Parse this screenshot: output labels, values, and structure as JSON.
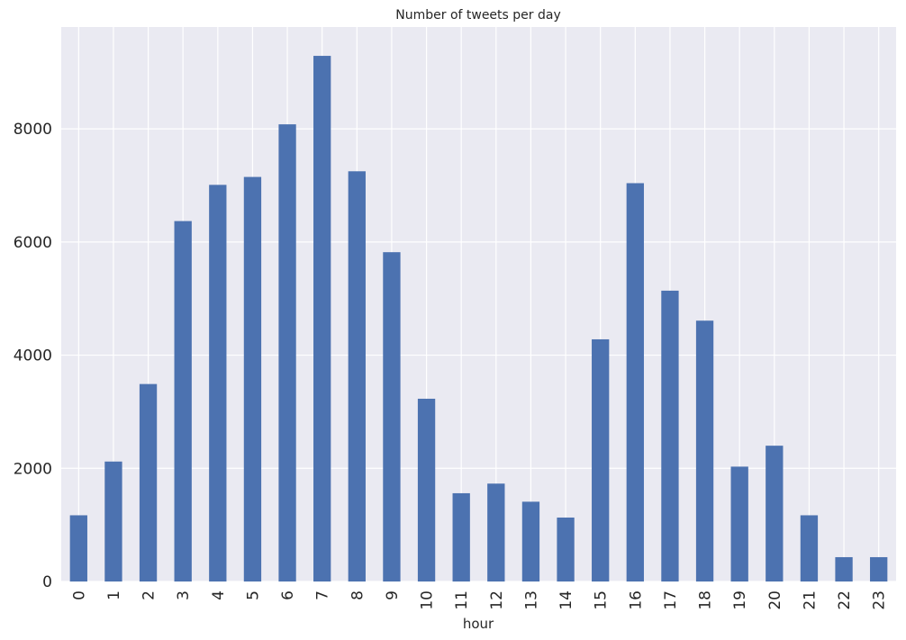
{
  "chart_data": {
    "type": "bar",
    "title": "Number of tweets per day",
    "xlabel": "hour",
    "ylabel": "",
    "categories": [
      "0",
      "1",
      "2",
      "3",
      "4",
      "5",
      "6",
      "7",
      "8",
      "9",
      "10",
      "11",
      "12",
      "13",
      "14",
      "15",
      "16",
      "17",
      "18",
      "19",
      "20",
      "21",
      "22",
      "23"
    ],
    "values": [
      1170,
      2120,
      3490,
      6370,
      7010,
      7150,
      8080,
      9290,
      7250,
      5820,
      3230,
      1560,
      1730,
      1410,
      1130,
      4280,
      7040,
      5140,
      4610,
      2030,
      2400,
      1170,
      430,
      430
    ],
    "ylim": [
      0,
      9800
    ],
    "yticks": [
      0,
      2000,
      4000,
      6000,
      8000
    ],
    "ytick_labels": [
      "0",
      "2000",
      "4000",
      "6000",
      "8000"
    ],
    "grid": true,
    "legend": "none",
    "colors": {
      "bar": "#4c72b0",
      "background": "#eaeaf2",
      "grid": "#ffffff",
      "text": "#262626"
    }
  }
}
